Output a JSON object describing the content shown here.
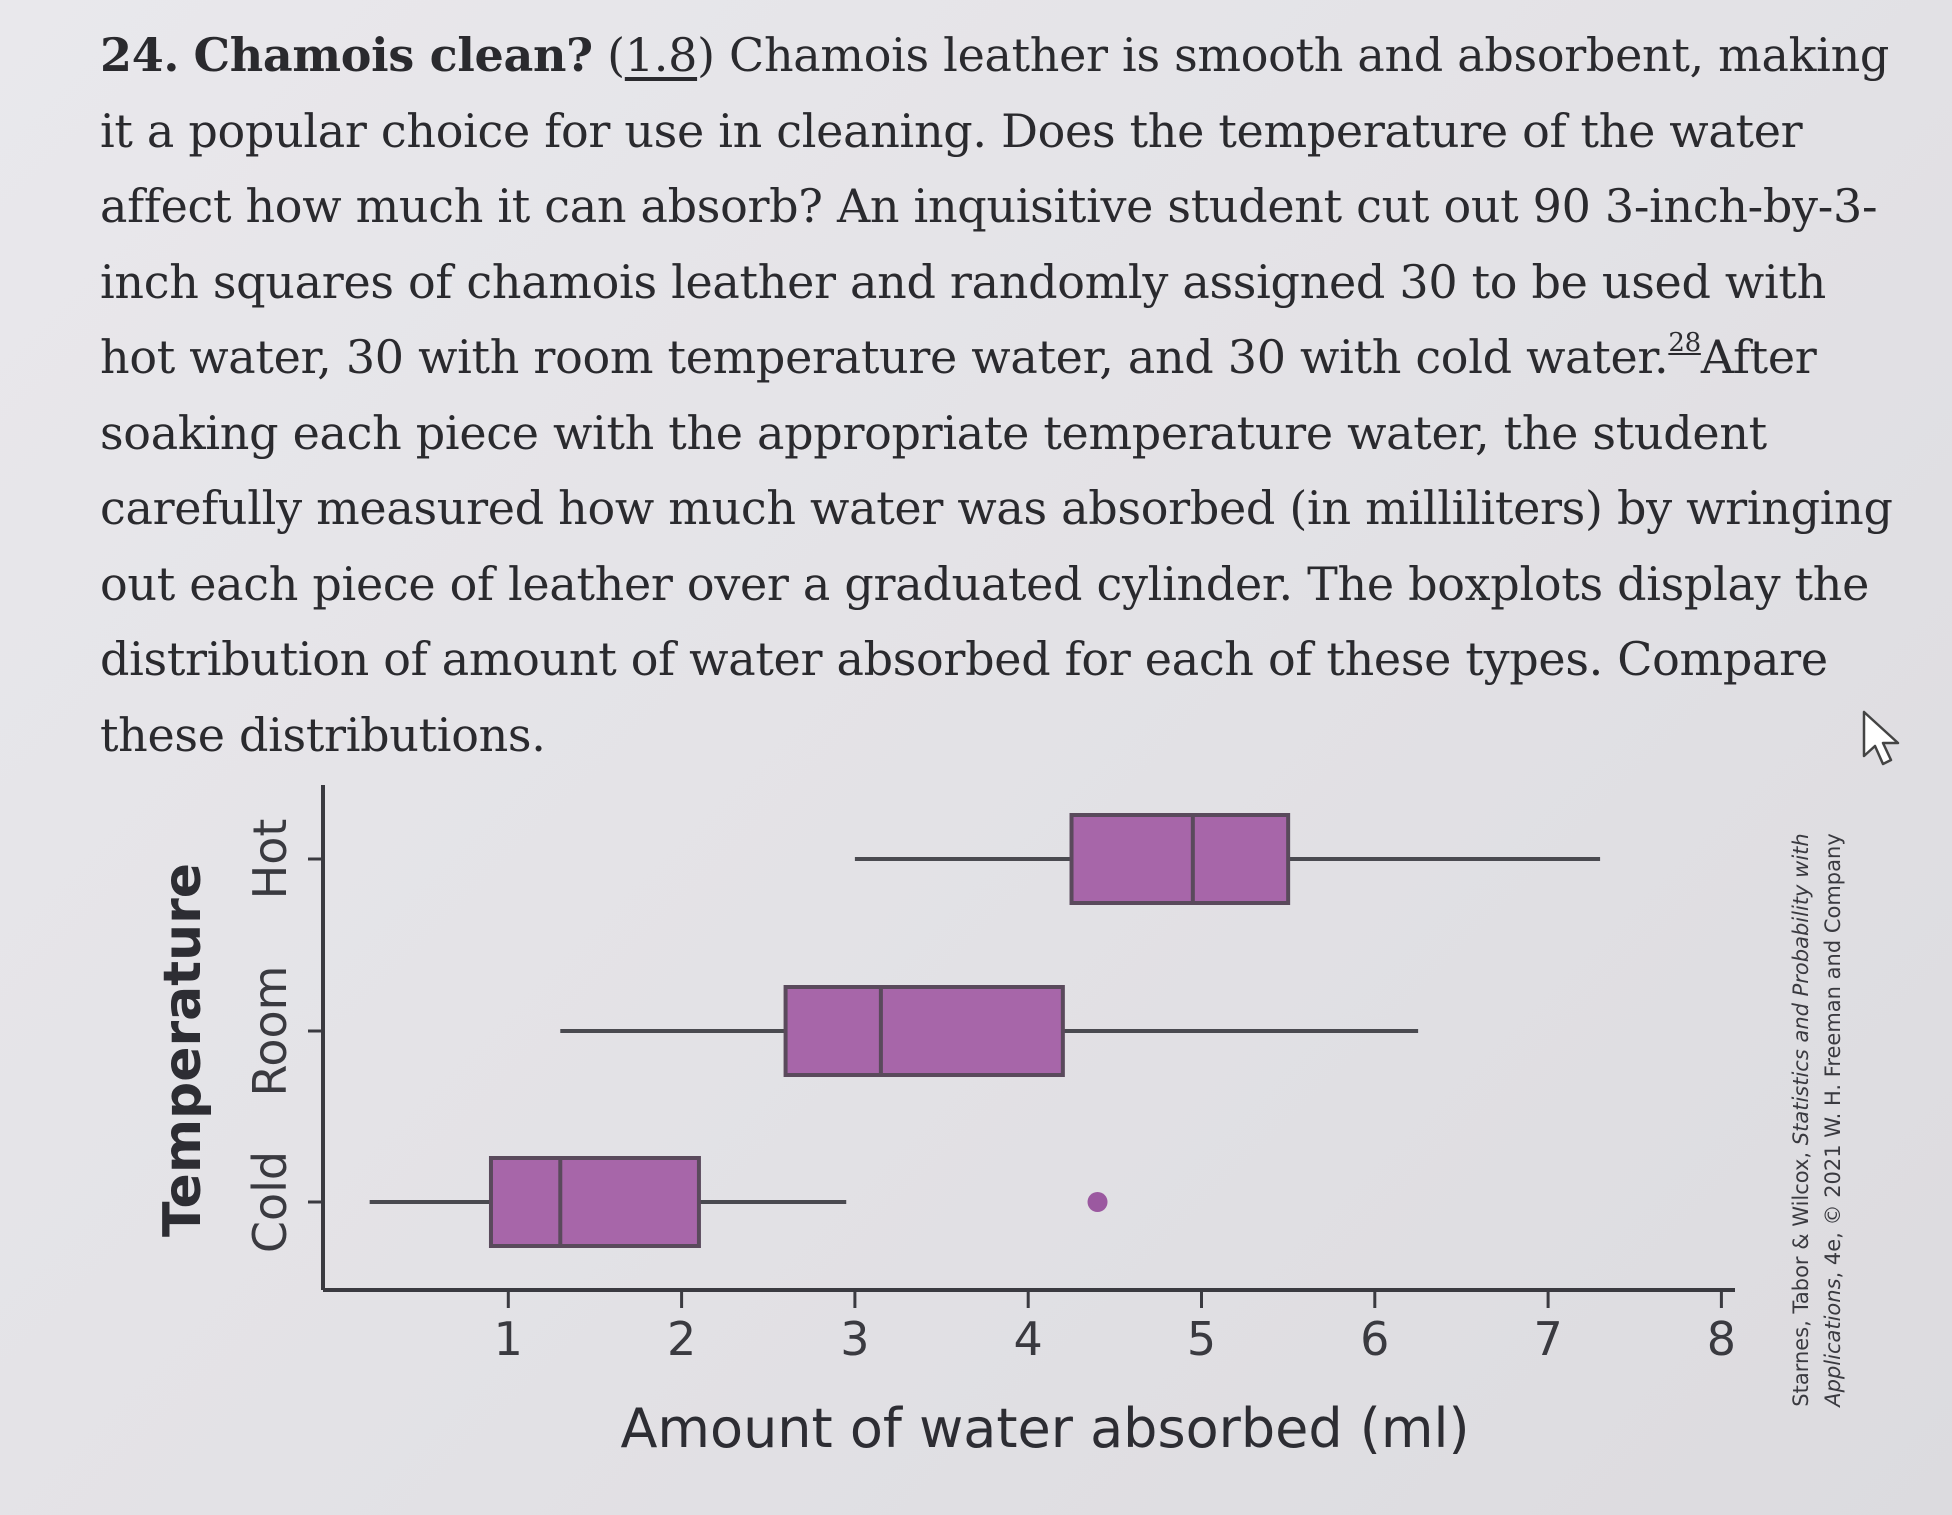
{
  "problem": {
    "number": "24.",
    "title": "Chamois clean?",
    "section_ref": "1.8",
    "text_part1": " Chamois leather is smooth and absorbent, making it a popular choice for use in cleaning. Does the temperature of the water affect how much it can absorb? An inquisitive student cut out 90 3-inch-by-3-inch squares of chamois leather and randomly assigned 30 to be used with hot water, 30 with room temperature water, and 30 with cold water.",
    "footnote": "28",
    "text_part2": "After soaking each piece with the appropriate temperature water, the student carefully measured how much water was absorbed (in milliliters) by wringing out each piece of leather over a graduated cylinder. The boxplots display the distribution of amount of water absorbed for each of these types. Compare these distributions."
  },
  "chart_data": {
    "type": "boxplot",
    "orientation": "horizontal",
    "xlabel": "Amount of water absorbed (ml)",
    "ylabel": "Temperature",
    "xlim": [
      0,
      8
    ],
    "xticks": [
      1,
      2,
      3,
      4,
      5,
      6,
      7,
      8
    ],
    "categories": [
      "Cold",
      "Room",
      "Hot"
    ],
    "series": [
      {
        "name": "Cold",
        "min": 0.2,
        "q1": 0.9,
        "median": 1.3,
        "q3": 2.1,
        "max": 2.95,
        "outliers": [
          4.4
        ]
      },
      {
        "name": "Room",
        "min": 1.3,
        "q1": 2.6,
        "median": 3.15,
        "q3": 4.2,
        "max": 6.25,
        "outliers": []
      },
      {
        "name": "Hot",
        "min": 3.0,
        "q1": 4.25,
        "median": 4.95,
        "q3": 5.5,
        "max": 7.3,
        "outliers": []
      }
    ],
    "box_color": "#a766a9",
    "box_edge_color": "#5a4a5c",
    "outlier_color": "#9b59a0"
  },
  "credit": {
    "line1_prefix": "Starnes, Tabor & Wilcox, ",
    "line1_italic": "Statistics and Probability with",
    "line2_italic": "Applications",
    "line2_suffix": ", 4e, © 2021 W. H. Freeman and Company"
  },
  "icons": {
    "cursor": "pointer-cursor-icon"
  }
}
